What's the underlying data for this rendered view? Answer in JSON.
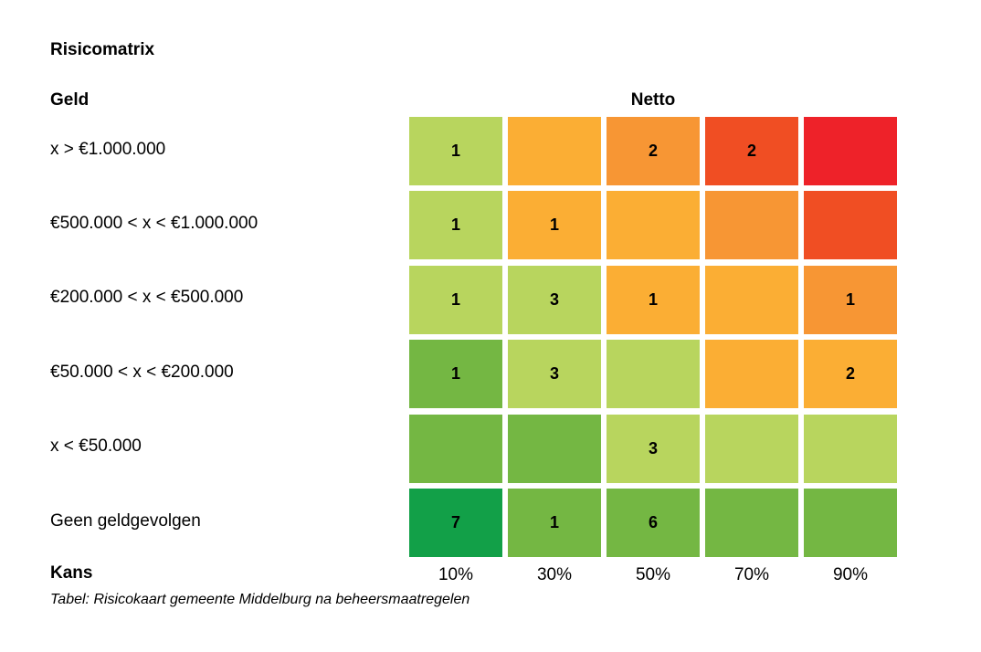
{
  "chart_data": {
    "type": "heatmap",
    "title": "Risicomatrix",
    "row_axis_label": "Geld",
    "column_axis_label": "Netto",
    "x_axis_label": "Kans",
    "caption": "Tabel: Risicokaart gemeente Middelburg na beheersmaatregelen",
    "columns": [
      "10%",
      "30%",
      "50%",
      "70%",
      "90%"
    ],
    "rows": [
      "x > €1.000.000",
      "€500.000 < x < €1.000.000",
      "€200.000 < x < €500.000",
      "€50.000 < x < €200.000",
      "x < €50.000",
      "Geen geldgevolgen"
    ],
    "values": [
      [
        "1",
        "",
        "2",
        "2",
        ""
      ],
      [
        "1",
        "1",
        "",
        "",
        ""
      ],
      [
        "1",
        "3",
        "1",
        "",
        "1"
      ],
      [
        "1",
        "3",
        "",
        "",
        "2"
      ],
      [
        "",
        "",
        "3",
        "",
        ""
      ],
      [
        "7",
        "1",
        "6",
        "",
        ""
      ]
    ],
    "cell_colors": [
      [
        "#b8d55e",
        "#fbae34",
        "#f79634",
        "#f04e23",
        "#ee2229"
      ],
      [
        "#b8d55e",
        "#fbae34",
        "#fbae34",
        "#f79634",
        "#f04e23"
      ],
      [
        "#b8d55e",
        "#b8d55e",
        "#fbae34",
        "#fbae34",
        "#f79634"
      ],
      [
        "#74b743",
        "#b8d55e",
        "#b8d55e",
        "#fbae34",
        "#fbae34"
      ],
      [
        "#74b743",
        "#74b743",
        "#b8d55e",
        "#b8d55e",
        "#b8d55e"
      ],
      [
        "#12a048",
        "#74b743",
        "#74b743",
        "#74b743",
        "#74b743"
      ]
    ]
  }
}
